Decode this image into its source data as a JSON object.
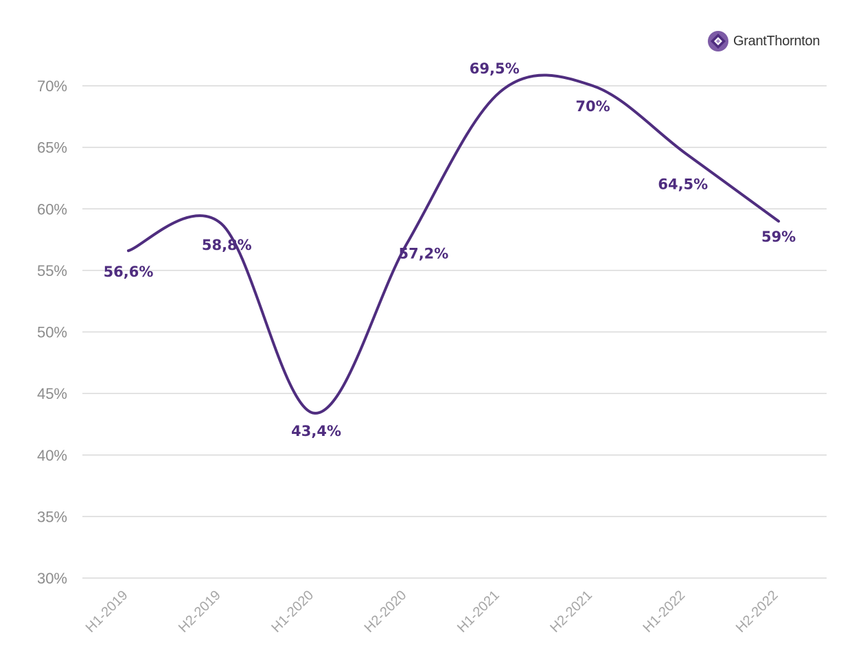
{
  "brand": {
    "name": "GrantThornton",
    "color": "#4f2d7f"
  },
  "chart_data": {
    "type": "line",
    "title": "",
    "xlabel": "",
    "ylabel": "",
    "smooth": true,
    "categories": [
      "H1-2019",
      "H2-2019",
      "H1-2020",
      "H2-2020",
      "H1-2021",
      "H2-2021",
      "H1-2022",
      "H2-2022"
    ],
    "series": [
      {
        "name": "",
        "values": [
          56.6,
          58.8,
          43.4,
          57.2,
          69.5,
          70,
          64.5,
          59
        ],
        "labels": [
          "56,6%",
          "58,8%",
          "43,4%",
          "57,2%",
          "69,5%",
          "70%",
          "64,5%",
          "59%"
        ],
        "color": "#4f2d7f"
      }
    ],
    "ylim": [
      30,
      70
    ],
    "yticks": [
      30,
      35,
      40,
      45,
      50,
      55,
      60,
      65,
      70
    ],
    "ytick_labels": [
      "30%",
      "35%",
      "40%",
      "45%",
      "50%",
      "55%",
      "60%",
      "65%",
      "70%"
    ],
    "grid": true,
    "legend": "none"
  }
}
